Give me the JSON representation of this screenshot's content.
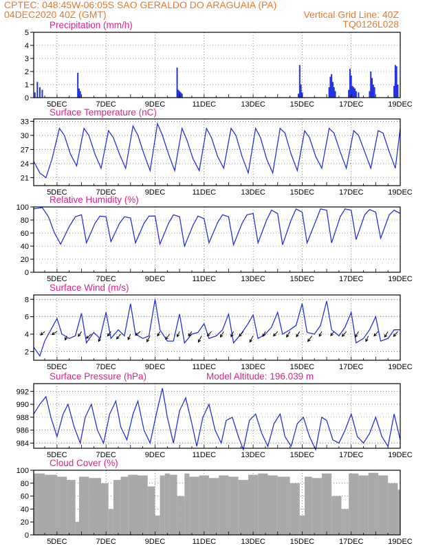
{
  "header": {
    "line1_left": "CPTEC:  048:45W-06:05S  SAO GERALDO DO ARAGUAIA (PA)",
    "line2_left": "04DEC2020 40Z (GMT)",
    "line2_right": "Vertical Grid Line: 40Z",
    "line3_right": "TQ0126L028"
  },
  "model_altitude": "Model Altitude: 196.039 m",
  "colors": {
    "header": "#e8792a",
    "title": "#e0208c",
    "series": "#2233dd",
    "cloud": "#a9a9a9"
  },
  "x_tick_labels": [
    "5DEC",
    "7DEC",
    "9DEC",
    "11DEC",
    "13DEC",
    "15DEC",
    "17DEC",
    "19DEC"
  ],
  "x_range_days": [
    4.05,
    19.0
  ],
  "chart_data": [
    {
      "type": "bar",
      "title": "Precipitation (mm/h)",
      "ylim": [
        0,
        5
      ],
      "yticks": [
        "0",
        "1",
        "2",
        "3",
        "4",
        "5"
      ],
      "x": [
        4.1,
        4.2,
        4.3,
        4.4,
        5.85,
        5.9,
        5.95,
        9.9,
        9.95,
        10.0,
        10.05,
        10.1,
        14.85,
        14.9,
        14.95,
        15.0,
        16.1,
        16.15,
        16.2,
        16.25,
        16.3,
        16.35,
        16.9,
        16.95,
        17.0,
        17.05,
        17.1,
        17.15,
        17.2,
        17.3,
        17.75,
        17.8,
        17.85,
        17.9,
        17.95,
        18.75,
        18.8,
        18.85,
        18.9
      ],
      "values": [
        0.4,
        1.2,
        0.8,
        0.6,
        1.9,
        0.7,
        0.5,
        2.3,
        0.6,
        0.5,
        0.4,
        0.3,
        0.3,
        2.5,
        1.0,
        0.4,
        0.8,
        1.6,
        1.8,
        1.2,
        0.8,
        0.5,
        0.6,
        2.2,
        1.7,
        0.9,
        0.8,
        0.7,
        0.5,
        0.4,
        0.5,
        2.0,
        1.5,
        1.0,
        0.8,
        0.9,
        2.5,
        2.4,
        1.0
      ]
    },
    {
      "type": "line",
      "title": "Surface Temperature (nC)",
      "ylim": [
        19.3,
        33.5
      ],
      "yticks": [
        "21",
        "24",
        "27",
        "30",
        "33"
      ],
      "ytick_values": [
        21,
        24,
        27,
        30,
        33
      ],
      "x": [
        4.05,
        4.3,
        4.55,
        4.8,
        5.1,
        5.3,
        5.55,
        5.8,
        6.1,
        6.3,
        6.55,
        6.8,
        7.1,
        7.3,
        7.55,
        7.8,
        8.1,
        8.3,
        8.55,
        8.8,
        9.1,
        9.3,
        9.55,
        9.8,
        10.1,
        10.3,
        10.55,
        10.8,
        11.1,
        11.3,
        11.55,
        11.8,
        12.1,
        12.3,
        12.55,
        12.8,
        13.1,
        13.3,
        13.55,
        13.8,
        14.1,
        14.3,
        14.55,
        14.8,
        15.1,
        15.3,
        15.55,
        15.8,
        16.1,
        16.3,
        16.55,
        16.8,
        17.1,
        17.3,
        17.55,
        17.8,
        18.1,
        18.3,
        18.55,
        18.8,
        19.0
      ],
      "values": [
        24.5,
        22.0,
        21.0,
        25.0,
        31.5,
        30.0,
        26.0,
        23.5,
        31.5,
        30.0,
        26.0,
        23.0,
        31.0,
        29.5,
        26.0,
        23.0,
        32.0,
        30.0,
        26.0,
        22.5,
        32.5,
        30.0,
        26.0,
        22.5,
        31.5,
        29.0,
        25.0,
        22.5,
        31.5,
        29.5,
        25.5,
        23.0,
        31.5,
        30.0,
        25.5,
        22.0,
        31.5,
        29.5,
        25.0,
        22.0,
        31.5,
        30.5,
        26.0,
        22.5,
        31.0,
        29.5,
        25.5,
        23.0,
        31.5,
        30.5,
        26.5,
        23.0,
        31.0,
        30.0,
        26.5,
        23.0,
        31.0,
        30.5,
        26.5,
        23.0,
        31.5
      ]
    },
    {
      "type": "line",
      "title": "Relative Humidity (%)",
      "ylim": [
        0,
        100
      ],
      "yticks": [
        "0",
        "20",
        "40",
        "60",
        "80",
        "100"
      ],
      "ytick_values": [
        0,
        20,
        40,
        60,
        80,
        100
      ],
      "x": [
        4.05,
        4.4,
        4.65,
        4.9,
        5.15,
        5.5,
        5.75,
        6.0,
        6.2,
        6.55,
        6.75,
        7.0,
        7.2,
        7.55,
        7.75,
        8.0,
        8.2,
        8.55,
        8.75,
        9.0,
        9.2,
        9.55,
        9.75,
        10.0,
        10.2,
        10.55,
        10.75,
        11.0,
        11.2,
        11.55,
        11.75,
        12.0,
        12.2,
        12.55,
        12.75,
        13.0,
        13.2,
        13.55,
        13.75,
        14.0,
        14.2,
        14.55,
        14.75,
        15.0,
        15.2,
        15.55,
        15.75,
        16.0,
        16.2,
        16.55,
        16.75,
        17.0,
        17.2,
        17.55,
        17.75,
        18.0,
        18.2,
        18.55,
        18.75,
        19.0
      ],
      "values": [
        97,
        99,
        85,
        60,
        43,
        70,
        85,
        88,
        45,
        75,
        86,
        85,
        47,
        75,
        85,
        83,
        45,
        75,
        86,
        86,
        43,
        75,
        88,
        85,
        40,
        72,
        86,
        82,
        45,
        76,
        88,
        85,
        42,
        75,
        88,
        90,
        45,
        80,
        95,
        90,
        42,
        80,
        97,
        92,
        45,
        78,
        97,
        95,
        45,
        85,
        97,
        95,
        50,
        88,
        96,
        92,
        52,
        88,
        95,
        90
      ]
    },
    {
      "type": "line",
      "title": "Surface Wind (m/s)",
      "ylim": [
        1,
        8.5
      ],
      "yticks": [
        "2",
        "4",
        "6",
        "8"
      ],
      "ytick_values": [
        2,
        4,
        6,
        8
      ],
      "x": [
        4.05,
        4.3,
        4.5,
        4.75,
        5.0,
        5.2,
        5.5,
        5.75,
        6.0,
        6.2,
        6.5,
        6.75,
        7.0,
        7.2,
        7.5,
        7.75,
        8.0,
        8.2,
        8.5,
        8.75,
        9.0,
        9.2,
        9.5,
        9.75,
        10.0,
        10.2,
        10.5,
        10.75,
        11.0,
        11.2,
        11.5,
        11.75,
        12.0,
        12.2,
        12.5,
        12.75,
        13.0,
        13.2,
        13.5,
        13.75,
        14.0,
        14.2,
        14.5,
        14.75,
        15.0,
        15.2,
        15.5,
        15.75,
        16.0,
        16.2,
        16.5,
        16.75,
        17.0,
        17.2,
        17.5,
        17.75,
        18.0,
        18.2,
        18.5,
        18.75,
        19.0
      ],
      "values": [
        2.5,
        1.5,
        3.2,
        4.5,
        5.8,
        4.0,
        3.5,
        3.8,
        6.4,
        3.0,
        4.2,
        3.5,
        6.5,
        3.5,
        4.5,
        3.8,
        7.5,
        4.0,
        3.5,
        3.8,
        8.0,
        4.5,
        3.2,
        3.2,
        6.3,
        3.0,
        4.0,
        4.2,
        5.2,
        3.5,
        3.8,
        4.5,
        6.3,
        3.0,
        4.0,
        5.0,
        6.2,
        3.5,
        4.0,
        4.8,
        6.5,
        4.0,
        4.5,
        5.0,
        7.5,
        4.2,
        4.0,
        5.0,
        7.8,
        4.5,
        3.8,
        4.8,
        6.5,
        3.0,
        3.5,
        4.5,
        6.0,
        3.2,
        3.5,
        4.5,
        4.5
      ],
      "vector_x": [
        4.5,
        5.0,
        5.4,
        6.0,
        6.4,
        6.8,
        7.2,
        7.6,
        8.0,
        8.4,
        8.8,
        9.2,
        9.6,
        10.0,
        10.5,
        10.9,
        11.3,
        11.8,
        12.2,
        12.6,
        13.0,
        13.5,
        14.0,
        14.5,
        14.9,
        15.4,
        15.8,
        16.3,
        16.8,
        17.3,
        17.7,
        18.1,
        18.5,
        18.9
      ],
      "vector_y": [
        4.3,
        4.3,
        3.8,
        4.3,
        4.0,
        3.8,
        4.3,
        4.0,
        4.0,
        4.3,
        3.8,
        4.3,
        4.0,
        4.3,
        4.3,
        3.8,
        4.3,
        4.3,
        4.3,
        4.3,
        3.8,
        4.3,
        4.3,
        4.3,
        4.3,
        3.8,
        4.3,
        4.3,
        4.3,
        4.3,
        3.8,
        4.3,
        4.3,
        4.3
      ],
      "vector_dx": [
        -0.5,
        -0.6,
        -0.2,
        -0.4,
        -0.6,
        -0.3,
        -0.4,
        -0.5,
        -0.3,
        -0.6,
        -0.4,
        -0.3,
        -0.5,
        -0.3,
        -0.4,
        -0.4,
        -0.5,
        -0.4,
        -0.3,
        -0.5,
        -0.4,
        -0.3,
        -0.5,
        -0.4,
        -0.4,
        -0.5,
        -0.3,
        -0.4,
        -0.5,
        -0.4,
        -0.3,
        -0.5,
        -0.4,
        -0.5
      ],
      "vector_dy": [
        -1.0,
        -0.9,
        -1.2,
        -1.4,
        -1.2,
        -1.6,
        -1.3,
        -1.4,
        -1.6,
        -1.1,
        -1.7,
        -1.3,
        -1.5,
        -1.5,
        -1.3,
        -1.8,
        -1.3,
        -1.6,
        -1.5,
        -1.4,
        -1.8,
        -1.4,
        -1.3,
        -1.6,
        -1.5,
        -1.6,
        -1.4,
        -1.2,
        -1.4,
        -1.6,
        -1.6,
        -1.3,
        -1.6,
        -1.4
      ]
    },
    {
      "type": "line",
      "title": "Surface Pressure (hPa)",
      "ylim": [
        983.2,
        993.2
      ],
      "yticks": [
        "984",
        "986",
        "988",
        "990",
        "992"
      ],
      "ytick_values": [
        984,
        986,
        988,
        990,
        992
      ],
      "x": [
        4.05,
        4.3,
        4.55,
        4.75,
        5.0,
        5.25,
        5.45,
        5.7,
        5.95,
        6.15,
        6.4,
        6.65,
        6.9,
        7.15,
        7.4,
        7.6,
        7.85,
        8.1,
        8.3,
        8.55,
        8.8,
        9.05,
        9.3,
        9.5,
        9.75,
        10.0,
        10.25,
        10.5,
        10.7,
        10.95,
        11.2,
        11.45,
        11.7,
        11.9,
        12.15,
        12.4,
        12.6,
        12.85,
        13.1,
        13.35,
        13.6,
        13.85,
        14.1,
        14.3,
        14.55,
        14.8,
        15.05,
        15.3,
        15.55,
        15.8,
        16.0,
        16.25,
        16.5,
        16.75,
        17.0,
        17.25,
        17.5,
        17.75,
        18.0,
        18.25,
        18.5,
        18.75,
        19.0
      ],
      "values": [
        988.5,
        990.0,
        991.2,
        988.0,
        985.0,
        988.5,
        990.0,
        986.5,
        984.0,
        988.0,
        990.0,
        986.0,
        984.0,
        988.5,
        990.5,
        986.5,
        984.5,
        988.5,
        990.5,
        986.0,
        984.0,
        988.5,
        992.5,
        988.0,
        984.0,
        989.0,
        991.0,
        987.0,
        983.5,
        988.0,
        990.0,
        986.0,
        984.0,
        987.5,
        988.0,
        985.0,
        983.0,
        987.5,
        988.5,
        985.5,
        983.5,
        987.0,
        988.5,
        985.0,
        983.5,
        987.0,
        988.0,
        985.0,
        983.0,
        988.0,
        987.5,
        984.5,
        984.0,
        986.0,
        988.5,
        985.0,
        984.0,
        985.5,
        988.0,
        985.0,
        983.5,
        988.5,
        984.5
      ]
    },
    {
      "type": "bar",
      "title": "Cloud Cover (%)",
      "ylim": [
        0,
        100
      ],
      "yticks": [
        "0",
        "20",
        "40",
        "60",
        "80",
        "100"
      ],
      "ytick_values": [
        0,
        20,
        40,
        60,
        80,
        100
      ],
      "x": [
        4.05,
        4.5,
        5.0,
        5.4,
        5.75,
        5.9,
        6.3,
        6.8,
        7.1,
        7.3,
        7.6,
        7.9,
        8.3,
        8.7,
        9.0,
        9.2,
        9.4,
        9.6,
        9.9,
        10.2,
        10.4,
        10.8,
        11.2,
        11.6,
        12.0,
        12.4,
        12.8,
        13.2,
        13.6,
        14.0,
        14.5,
        14.9,
        15.1,
        15.4,
        15.8,
        16.2,
        16.6,
        16.9,
        17.3,
        17.7,
        18.1,
        18.5,
        18.9
      ],
      "values": [
        95,
        93,
        90,
        85,
        20,
        90,
        88,
        80,
        40,
        85,
        90,
        93,
        92,
        75,
        30,
        92,
        95,
        93,
        60,
        95,
        90,
        92,
        88,
        92,
        90,
        85,
        93,
        95,
        92,
        90,
        80,
        30,
        90,
        88,
        95,
        60,
        40,
        95,
        92,
        96,
        92,
        80,
        70
      ]
    }
  ]
}
